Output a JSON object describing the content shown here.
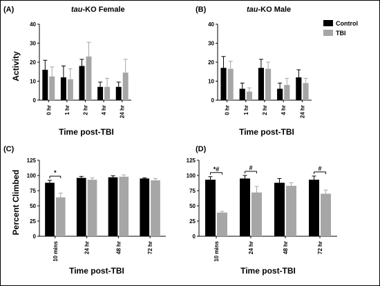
{
  "chart_data": [
    {
      "type": "bar",
      "panel_label": "(A)",
      "title_italic": "tau",
      "title_rest": "-KO Female",
      "ylabel": "Activity",
      "xlabel": "Time post-TBI",
      "ylim": [
        0,
        40
      ],
      "yticks": [
        "0",
        "10",
        "20",
        "30",
        "40"
      ],
      "categories": [
        "0 hr",
        "1 hr",
        "2 hr",
        "4 hr",
        "24 hr"
      ],
      "series": [
        {
          "name": "Control",
          "color": "#000000",
          "values": [
            16,
            12,
            18,
            7,
            7
          ],
          "errors": [
            5,
            6,
            3.5,
            2.5,
            2.5
          ]
        },
        {
          "name": "TBI",
          "color": "#a6a6a6",
          "values": [
            12.5,
            11,
            23,
            7,
            14.5
          ],
          "errors": [
            5,
            5.5,
            7.5,
            4.5,
            7
          ]
        }
      ],
      "significance": []
    },
    {
      "type": "bar",
      "panel_label": "(B)",
      "title_italic": "tau",
      "title_rest": "-KO Male",
      "ylabel": "",
      "xlabel": "Time post-TBI",
      "ylim": [
        0,
        40
      ],
      "yticks": [
        "0",
        "10",
        "20",
        "30",
        "40"
      ],
      "categories": [
        "0 hr",
        "1 hr",
        "2 hr",
        "4 hr",
        "24 hr"
      ],
      "series": [
        {
          "name": "Control",
          "color": "#000000",
          "values": [
            17,
            6,
            17,
            6,
            12
          ],
          "errors": [
            6,
            3,
            4.5,
            3,
            4
          ]
        },
        {
          "name": "TBI",
          "color": "#a6a6a6",
          "values": [
            16.5,
            4.5,
            16.5,
            8,
            9
          ],
          "errors": [
            4,
            2,
            3.5,
            3.5,
            2.5
          ]
        }
      ],
      "legend": {
        "placement": "top-right",
        "entries": [
          "Control",
          "TBI"
        ]
      },
      "significance": []
    },
    {
      "type": "bar",
      "panel_label": "(C)",
      "title_italic": "",
      "title_rest": "",
      "ylabel": "Percent Climbed",
      "xlabel": "Time post-TBI",
      "ylim": [
        0,
        125
      ],
      "yticks": [
        "0",
        "25",
        "50",
        "75",
        "100",
        "125"
      ],
      "categories": [
        "10 mins",
        "24 hr",
        "48 hr",
        "72 hr"
      ],
      "series": [
        {
          "name": "Control",
          "color": "#000000",
          "values": [
            88,
            96,
            97,
            95
          ],
          "errors": [
            4,
            2.5,
            2.5,
            1
          ]
        },
        {
          "name": "TBI",
          "color": "#a6a6a6",
          "values": [
            64,
            93,
            98,
            92
          ],
          "errors": [
            7,
            3,
            3,
            3
          ]
        }
      ],
      "significance": [
        {
          "category_index": 0,
          "label": "*"
        }
      ]
    },
    {
      "type": "bar",
      "panel_label": "(D)",
      "title_italic": "",
      "title_rest": "",
      "ylabel": "",
      "xlabel": "Time post-TBI",
      "ylim": [
        0,
        125
      ],
      "yticks": [
        "0",
        "25",
        "50",
        "75",
        "100",
        "125"
      ],
      "categories": [
        "10 mins",
        "24 hr",
        "48 hr",
        "72 hr"
      ],
      "series": [
        {
          "name": "Control",
          "color": "#000000",
          "values": [
            93,
            95,
            88,
            93
          ],
          "errors": [
            5,
            5,
            7,
            6
          ]
        },
        {
          "name": "TBI",
          "color": "#a6a6a6",
          "values": [
            39,
            72,
            83,
            70
          ],
          "errors": [
            2,
            10,
            5,
            6
          ]
        }
      ],
      "significance": [
        {
          "category_index": 0,
          "label": "*#"
        },
        {
          "category_index": 1,
          "label": "#"
        },
        {
          "category_index": 3,
          "label": "#"
        }
      ]
    }
  ]
}
